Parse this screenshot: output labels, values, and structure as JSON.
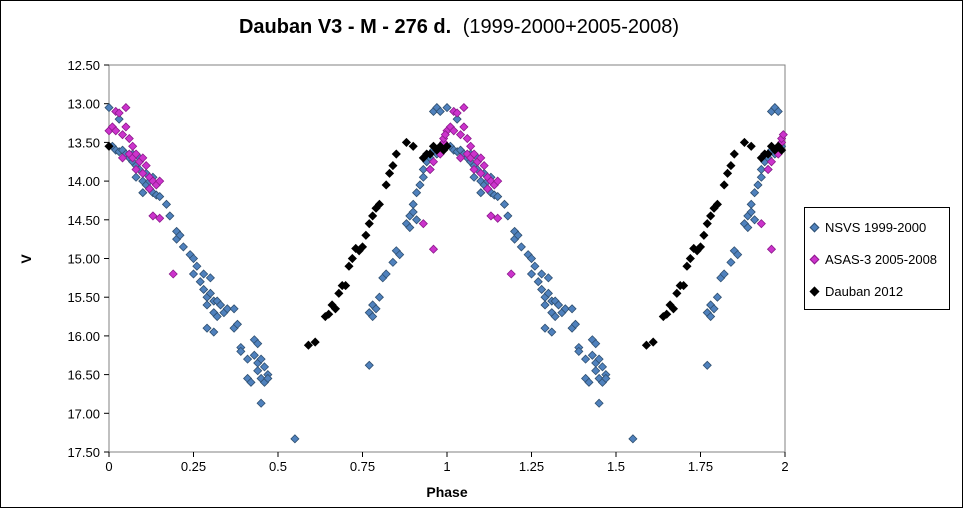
{
  "chart_data": {
    "type": "scatter",
    "title_main": "Dauban V3 - M - 276 d.",
    "title_sub": "(1999-2000+2005-2008)",
    "xlabel": "Phase",
    "ylabel": "V",
    "xlim": [
      0,
      2
    ],
    "ylim": [
      12.5,
      17.5
    ],
    "y_inverted": true,
    "x_ticks": [
      "0",
      "0.25",
      "0.5",
      "0.75",
      "1",
      "1.25",
      "1.5",
      "1.75",
      "2"
    ],
    "y_ticks": [
      "12.50",
      "13.00",
      "13.50",
      "14.00",
      "14.50",
      "15.00",
      "15.50",
      "16.00",
      "16.50",
      "17.00",
      "17.50"
    ],
    "grid": false,
    "legend_position": "right",
    "series": [
      {
        "name": "NSVS 1999-2000",
        "color": "#4f81bd",
        "stroke": "#2f4f6f",
        "base_points": [
          [
            0.0,
            13.05
          ],
          [
            0.01,
            13.55
          ],
          [
            0.02,
            13.6
          ],
          [
            0.03,
            13.62
          ],
          [
            0.03,
            13.2
          ],
          [
            0.04,
            13.6
          ],
          [
            0.05,
            13.65
          ],
          [
            0.06,
            13.7
          ],
          [
            0.07,
            13.75
          ],
          [
            0.07,
            13.65
          ],
          [
            0.08,
            13.8
          ],
          [
            0.08,
            13.95
          ],
          [
            0.09,
            13.7
          ],
          [
            0.09,
            13.85
          ],
          [
            0.1,
            14.0
          ],
          [
            0.1,
            14.15
          ],
          [
            0.11,
            13.9
          ],
          [
            0.11,
            14.05
          ],
          [
            0.12,
            14.0
          ],
          [
            0.12,
            14.1
          ],
          [
            0.13,
            13.95
          ],
          [
            0.13,
            14.15
          ],
          [
            0.14,
            14.18
          ],
          [
            0.15,
            14.2
          ],
          [
            0.17,
            14.3
          ],
          [
            0.18,
            14.45
          ],
          [
            0.2,
            14.65
          ],
          [
            0.2,
            14.75
          ],
          [
            0.21,
            14.7
          ],
          [
            0.22,
            14.85
          ],
          [
            0.24,
            14.95
          ],
          [
            0.25,
            15.0
          ],
          [
            0.25,
            15.2
          ],
          [
            0.26,
            15.1
          ],
          [
            0.27,
            15.3
          ],
          [
            0.28,
            15.2
          ],
          [
            0.28,
            15.4
          ],
          [
            0.29,
            15.5
          ],
          [
            0.29,
            15.6
          ],
          [
            0.29,
            15.9
          ],
          [
            0.3,
            15.25
          ],
          [
            0.3,
            15.45
          ],
          [
            0.31,
            15.55
          ],
          [
            0.31,
            15.7
          ],
          [
            0.31,
            15.95
          ],
          [
            0.32,
            15.55
          ],
          [
            0.32,
            15.75
          ],
          [
            0.33,
            15.6
          ],
          [
            0.34,
            15.7
          ],
          [
            0.35,
            15.65
          ],
          [
            0.37,
            15.9
          ],
          [
            0.37,
            15.65
          ],
          [
            0.38,
            15.85
          ],
          [
            0.39,
            16.15
          ],
          [
            0.39,
            16.2
          ],
          [
            0.41,
            16.3
          ],
          [
            0.41,
            16.55
          ],
          [
            0.42,
            16.6
          ],
          [
            0.43,
            16.05
          ],
          [
            0.43,
            16.25
          ],
          [
            0.44,
            16.1
          ],
          [
            0.44,
            16.35
          ],
          [
            0.44,
            16.45
          ],
          [
            0.45,
            16.3
          ],
          [
            0.45,
            16.55
          ],
          [
            0.45,
            16.87
          ],
          [
            0.46,
            16.4
          ],
          [
            0.46,
            16.6
          ],
          [
            0.47,
            16.5
          ],
          [
            0.47,
            16.55
          ],
          [
            0.55,
            17.33
          ],
          [
            0.77,
            15.7
          ],
          [
            0.77,
            16.38
          ],
          [
            0.78,
            15.6
          ],
          [
            0.78,
            15.75
          ],
          [
            0.79,
            15.65
          ],
          [
            0.8,
            15.5
          ],
          [
            0.81,
            15.25
          ],
          [
            0.82,
            15.2
          ],
          [
            0.84,
            15.05
          ],
          [
            0.85,
            14.9
          ],
          [
            0.86,
            14.95
          ],
          [
            0.88,
            14.55
          ],
          [
            0.89,
            14.45
          ],
          [
            0.89,
            14.6
          ],
          [
            0.9,
            14.3
          ],
          [
            0.9,
            14.4
          ],
          [
            0.91,
            14.15
          ],
          [
            0.91,
            14.5
          ],
          [
            0.92,
            14.05
          ],
          [
            0.93,
            13.85
          ],
          [
            0.93,
            13.95
          ],
          [
            0.94,
            13.75
          ],
          [
            0.95,
            13.7
          ],
          [
            0.95,
            13.85
          ],
          [
            0.96,
            13.6
          ],
          [
            0.96,
            13.1
          ],
          [
            0.97,
            13.65
          ],
          [
            0.97,
            13.05
          ],
          [
            0.98,
            13.1
          ],
          [
            0.99,
            13.55
          ]
        ]
      },
      {
        "name": "ASAS-3 2005-2008",
        "color": "#cc33cc",
        "stroke": "#8b1a8b",
        "base_points": [
          [
            0.0,
            13.35
          ],
          [
            0.01,
            13.3
          ],
          [
            0.02,
            13.1
          ],
          [
            0.02,
            13.35
          ],
          [
            0.03,
            13.12
          ],
          [
            0.04,
            13.4
          ],
          [
            0.04,
            13.7
          ],
          [
            0.05,
            13.05
          ],
          [
            0.05,
            13.3
          ],
          [
            0.06,
            13.45
          ],
          [
            0.06,
            13.65
          ],
          [
            0.07,
            13.55
          ],
          [
            0.07,
            13.7
          ],
          [
            0.08,
            13.65
          ],
          [
            0.08,
            13.85
          ],
          [
            0.09,
            13.75
          ],
          [
            0.1,
            13.7
          ],
          [
            0.1,
            13.9
          ],
          [
            0.11,
            13.8
          ],
          [
            0.12,
            13.95
          ],
          [
            0.12,
            14.1
          ],
          [
            0.13,
            14.0
          ],
          [
            0.13,
            14.45
          ],
          [
            0.14,
            14.05
          ],
          [
            0.15,
            14.0
          ],
          [
            0.15,
            14.48
          ],
          [
            0.19,
            15.2
          ],
          [
            0.93,
            14.55
          ],
          [
            0.95,
            13.85
          ],
          [
            0.96,
            13.75
          ],
          [
            0.96,
            14.88
          ],
          [
            0.98,
            13.65
          ],
          [
            0.99,
            13.5
          ],
          [
            0.99,
            13.45
          ],
          [
            0.995,
            13.4
          ]
        ]
      },
      {
        "name": "Dauban 2012",
        "color": "#000000",
        "stroke": "#000000",
        "base_points": [
          [
            0.0,
            13.55
          ],
          [
            0.59,
            16.12
          ],
          [
            0.61,
            16.08
          ],
          [
            0.64,
            15.75
          ],
          [
            0.65,
            15.72
          ],
          [
            0.66,
            15.6
          ],
          [
            0.67,
            15.65
          ],
          [
            0.68,
            15.45
          ],
          [
            0.69,
            15.35
          ],
          [
            0.7,
            15.35
          ],
          [
            0.71,
            15.1
          ],
          [
            0.72,
            15.0
          ],
          [
            0.73,
            14.87
          ],
          [
            0.74,
            14.9
          ],
          [
            0.75,
            14.85
          ],
          [
            0.76,
            14.7
          ],
          [
            0.77,
            14.55
          ],
          [
            0.78,
            14.45
          ],
          [
            0.79,
            14.35
          ],
          [
            0.8,
            14.3
          ],
          [
            0.82,
            14.05
          ],
          [
            0.83,
            13.9
          ],
          [
            0.84,
            13.8
          ],
          [
            0.85,
            13.65
          ],
          [
            0.88,
            13.5
          ],
          [
            0.9,
            13.55
          ],
          [
            0.93,
            13.7
          ],
          [
            0.94,
            13.65
          ],
          [
            0.95,
            13.65
          ],
          [
            0.96,
            13.55
          ],
          [
            0.97,
            13.6
          ],
          [
            0.98,
            13.55
          ],
          [
            0.99,
            13.6
          ]
        ]
      }
    ],
    "phase_repeat": true
  }
}
